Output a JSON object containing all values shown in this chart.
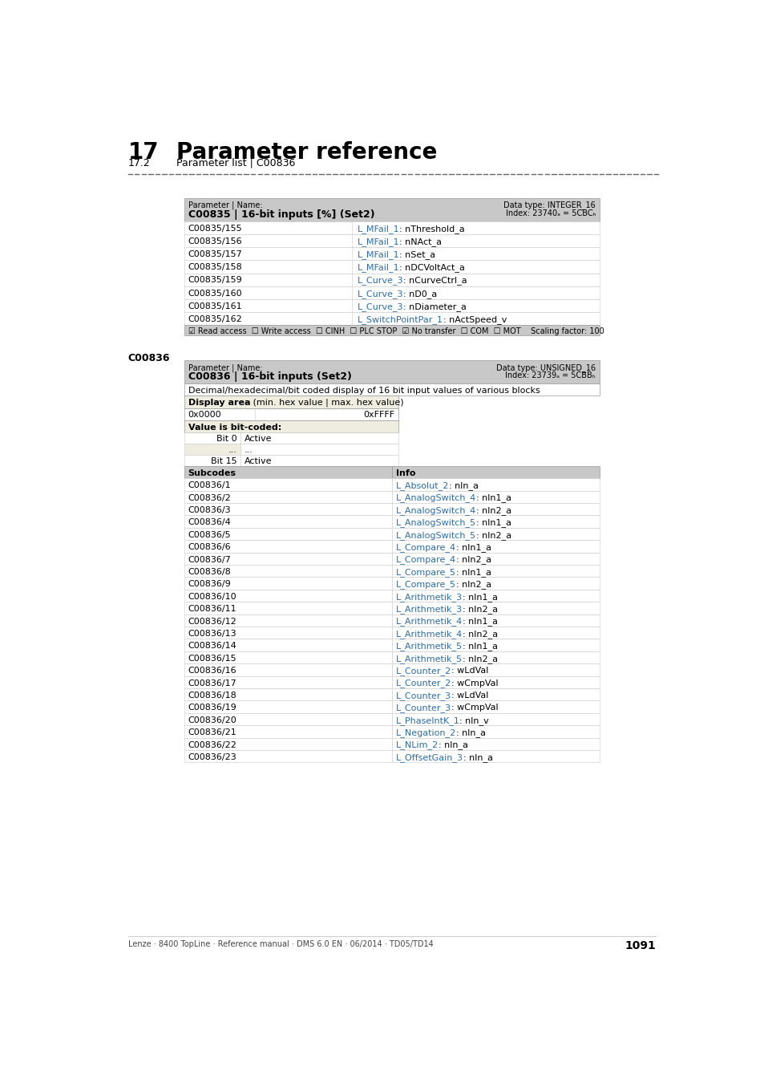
{
  "title_chapter": "17",
  "title_main": "Parameter reference",
  "subtitle_num": "17.2",
  "subtitle_text": "Parameter list | C00836",
  "footer_text": "Lenze · 8400 TopLine · Reference manual · DMS 6.0 EN · 06/2014 · TD05/TD14",
  "footer_page": "1091",
  "table1_header_left": "Parameter | Name:",
  "table1_header_bold": "C00835 | 16-bit inputs [%] (Set2)",
  "table1_header_right1": "Data type: INTEGER_16",
  "table1_header_right2": "Index: 23740ₐ = 5CBCₕ",
  "table1_rows": [
    [
      "C00835/155",
      "L_MFail_1",
      ": nThreshold_a"
    ],
    [
      "C00835/156",
      "L_MFail_1",
      ": nNAct_a"
    ],
    [
      "C00835/157",
      "L_MFail_1",
      ": nSet_a"
    ],
    [
      "C00835/158",
      "L_MFail_1",
      ": nDCVoltAct_a"
    ],
    [
      "C00835/159",
      "L_Curve_3",
      ": nCurveCtrl_a"
    ],
    [
      "C00835/160",
      "L_Curve_3",
      ": nD0_a"
    ],
    [
      "C00835/161",
      "L_Curve_3",
      ": nDiameter_a"
    ],
    [
      "C00835/162",
      "L_SwitchPointPar_1",
      ": nActSpeed_v"
    ]
  ],
  "table1_footer": "☑ Read access  ☐ Write access  ☐ CINH  ☐ PLC STOP  ☑ No transfer  ☐ COM  ☐ MOT    Scaling factor: 100",
  "c00836_label": "C00836",
  "table2_header_left": "Parameter | Name:",
  "table2_header_bold": "C00836 | 16-bit inputs (Set2)",
  "table2_header_right1": "Data type: UNSIGNED_16",
  "table2_header_right2": "Index: 23739ₐ = 5CBBₕ",
  "table2_desc": "Decimal/hexadecimal/bit coded display of 16 bit input values of various blocks",
  "display_area_header_bold": "Display area",
  "display_area_header_normal": " (min. hex value | max. hex value)",
  "display_min": "0x0000",
  "display_max": "0xFFFF",
  "value_bit_coded": "Value is bit-coded:",
  "bit_rows": [
    [
      "Bit 0",
      "Active"
    ],
    [
      "...",
      "..."
    ],
    [
      "Bit 15",
      "Active"
    ]
  ],
  "subcodes_header": "Subcodes",
  "info_header": "Info",
  "table2_rows": [
    [
      "C00836/1",
      "L_Absolut_2",
      ": nln_a"
    ],
    [
      "C00836/2",
      "L_AnalogSwitch_4",
      ": nln1_a"
    ],
    [
      "C00836/3",
      "L_AnalogSwitch_4",
      ": nln2_a"
    ],
    [
      "C00836/4",
      "L_AnalogSwitch_5",
      ": nln1_a"
    ],
    [
      "C00836/5",
      "L_AnalogSwitch_5",
      ": nln2_a"
    ],
    [
      "C00836/6",
      "L_Compare_4",
      ": nln1_a"
    ],
    [
      "C00836/7",
      "L_Compare_4",
      ": nln2_a"
    ],
    [
      "C00836/8",
      "L_Compare_5",
      ": nln1_a"
    ],
    [
      "C00836/9",
      "L_Compare_5",
      ": nln2_a"
    ],
    [
      "C00836/10",
      "L_Arithmetik_3",
      ": nln1_a"
    ],
    [
      "C00836/11",
      "L_Arithmetik_3",
      ": nln2_a"
    ],
    [
      "C00836/12",
      "L_Arithmetik_4",
      ": nln1_a"
    ],
    [
      "C00836/13",
      "L_Arithmetik_4",
      ": nln2_a"
    ],
    [
      "C00836/14",
      "L_Arithmetik_5",
      ": nln1_a"
    ],
    [
      "C00836/15",
      "L_Arithmetik_5",
      ": nln2_a"
    ],
    [
      "C00836/16",
      "L_Counter_2",
      ": wLdVal"
    ],
    [
      "C00836/17",
      "L_Counter_2",
      ": wCmpVal"
    ],
    [
      "C00836/18",
      "L_Counter_3",
      ": wLdVal"
    ],
    [
      "C00836/19",
      "L_Counter_3",
      ": wCmpVal"
    ],
    [
      "C00836/20",
      "L_PhaseIntK_1",
      ": nln_v"
    ],
    [
      "C00836/21",
      "L_Negation_2",
      ": nln_a"
    ],
    [
      "C00836/22",
      "L_NLim_2",
      ": nln_a"
    ],
    [
      "C00836/23",
      "L_OffsetGain_3",
      ": nln_a"
    ]
  ],
  "bg_header": "#c8c8c8",
  "bg_white": "#ffffff",
  "bg_light": "#eeede0",
  "bg_subcode_header": "#c8c8c8",
  "color_blue": "#2e6da4",
  "color_black": "#000000",
  "dashed_line_color": "#666666"
}
